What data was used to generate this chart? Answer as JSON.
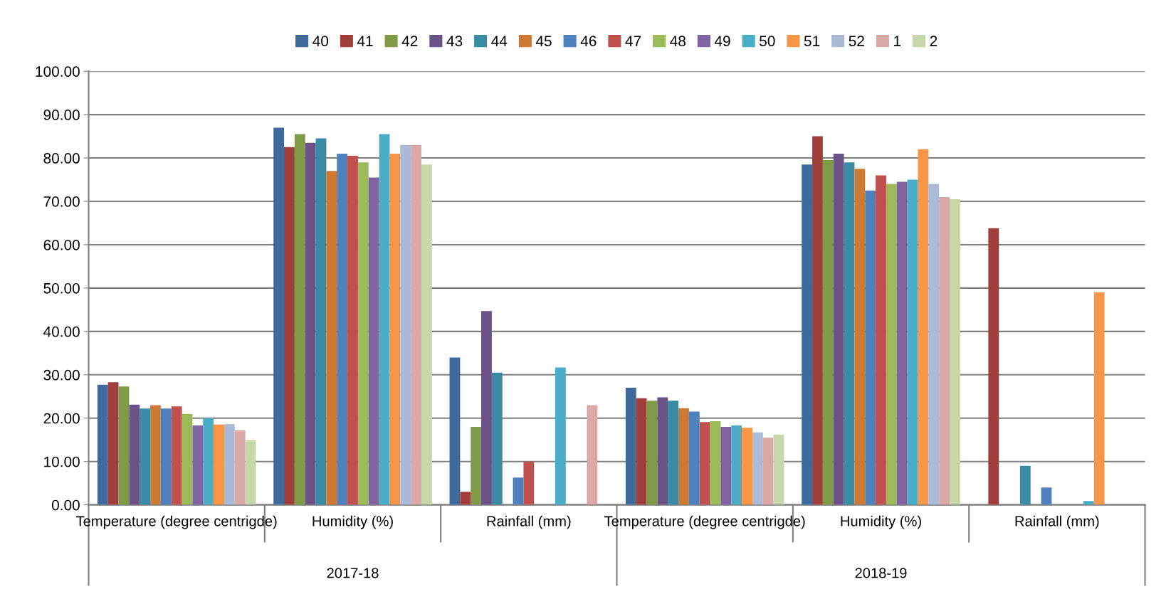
{
  "chart_data": {
    "type": "bar",
    "categories": [
      "Temperature (degree centrigde)",
      "Humidity (%)",
      "Rainfall (mm)",
      "Temperature (degree centrigde)",
      "Humidity (%)",
      "Rainfall (mm)"
    ],
    "annotations": [
      "2017-18",
      "2018-19"
    ],
    "series": [
      {
        "name": "40",
        "color": "#3f6a9c",
        "values": [
          27.7,
          87,
          34,
          27,
          78.5,
          0
        ]
      },
      {
        "name": "41",
        "color": "#a03e3c",
        "values": [
          28.3,
          82.5,
          3,
          24.6,
          85,
          63.8
        ]
      },
      {
        "name": "42",
        "color": "#809a48",
        "values": [
          27.3,
          85.5,
          18,
          24,
          79.5,
          0
        ]
      },
      {
        "name": "43",
        "color": "#6a5186",
        "values": [
          23.1,
          83.5,
          44.7,
          24.8,
          81,
          0
        ]
      },
      {
        "name": "44",
        "color": "#3a8ba3",
        "values": [
          22.2,
          84.5,
          30.5,
          24,
          79,
          9
        ]
      },
      {
        "name": "45",
        "color": "#cc7a36",
        "values": [
          23,
          77,
          0,
          22.3,
          77.5,
          0
        ]
      },
      {
        "name": "46",
        "color": "#4f81bd",
        "values": [
          22.2,
          81,
          6.3,
          21.5,
          72.5,
          4
        ]
      },
      {
        "name": "47",
        "color": "#c0504d",
        "values": [
          22.7,
          80.5,
          10,
          19.1,
          76,
          0
        ]
      },
      {
        "name": "48",
        "color": "#9bbb59",
        "values": [
          21,
          79,
          0,
          19.3,
          74,
          0
        ]
      },
      {
        "name": "49",
        "color": "#8064a2",
        "values": [
          18.3,
          75.5,
          0,
          18,
          74.5,
          0
        ]
      },
      {
        "name": "50",
        "color": "#4bacc6",
        "values": [
          20,
          85.5,
          31.7,
          18.3,
          75,
          0.9
        ]
      },
      {
        "name": "51",
        "color": "#f79646",
        "values": [
          18.5,
          81,
          0,
          17.8,
          82,
          49
        ]
      },
      {
        "name": "52",
        "color": "#aabad7",
        "values": [
          18.6,
          83,
          0,
          16.7,
          74,
          0
        ]
      },
      {
        "name": "1",
        "color": "#d9a9a8",
        "values": [
          17.2,
          83,
          23,
          15.5,
          71,
          0
        ]
      },
      {
        "name": "2",
        "color": "#c7d6ab",
        "values": [
          14.9,
          78.5,
          0,
          16.2,
          70.5,
          0
        ]
      }
    ],
    "ylim": [
      0,
      100
    ],
    "yticks": [
      {
        "value": 0,
        "label": "0.00"
      },
      {
        "value": 10,
        "label": "10.00"
      },
      {
        "value": 20,
        "label": "20.00"
      },
      {
        "value": 30,
        "label": "30.00"
      },
      {
        "value": 40,
        "label": "40.00"
      },
      {
        "value": 50,
        "label": "50.00"
      },
      {
        "value": 60,
        "label": "60.00"
      },
      {
        "value": 70,
        "label": "70.00"
      },
      {
        "value": 80,
        "label": "80.00"
      },
      {
        "value": 90,
        "label": "90.00"
      },
      {
        "value": 100,
        "label": "100.00"
      }
    ],
    "grid": "y",
    "legend": "top"
  }
}
